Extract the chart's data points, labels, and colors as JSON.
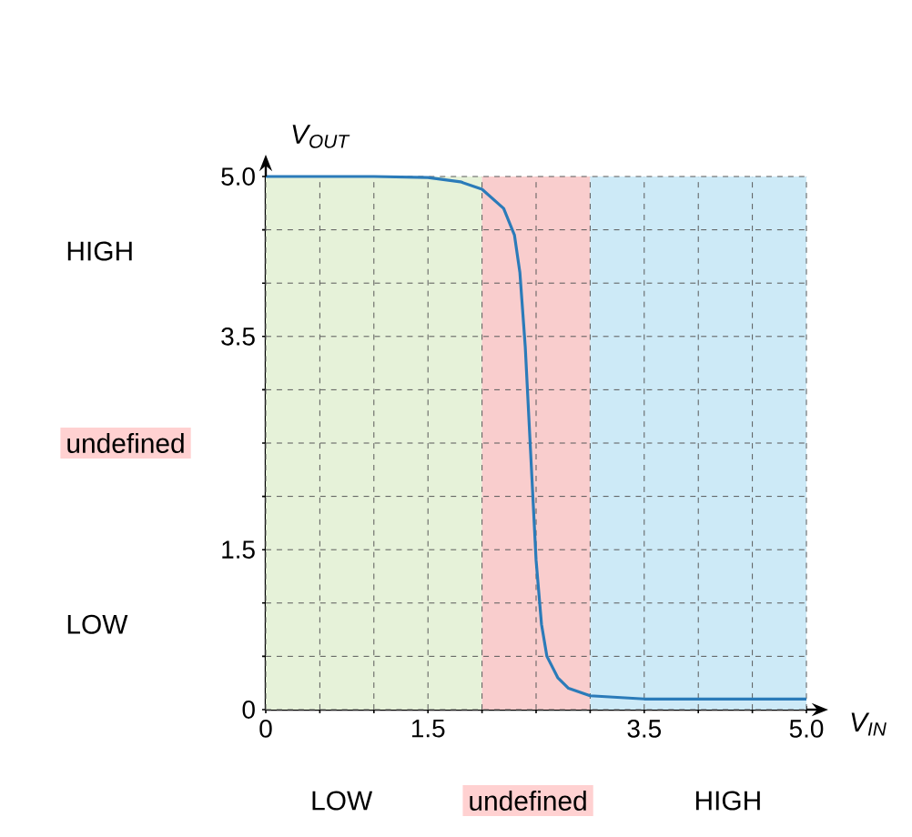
{
  "chart_data": {
    "type": "line",
    "xlabel": "V$_{IN}$",
    "ylabel": "V$_{OUT}$",
    "series": [
      {
        "color": "#2b7bb9",
        "x": [
          0,
          1,
          1.5,
          1.8,
          2.0,
          2.2,
          2.3,
          2.35,
          2.4,
          2.45,
          2.5,
          2.55,
          2.6,
          2.7,
          2.8,
          3.0,
          3.5,
          4.0,
          5.0
        ],
        "values": [
          5,
          5,
          4.99,
          4.95,
          4.88,
          4.7,
          4.45,
          4.1,
          3.4,
          2.4,
          1.4,
          0.8,
          0.5,
          0.3,
          0.2,
          0.13,
          0.1,
          0.1,
          0.1
        ]
      }
    ],
    "xlim": [
      0,
      5
    ],
    "ylim": [
      0,
      5
    ],
    "xticks": [
      0,
      {
        "value": 0.5,
        "label": null
      },
      {
        "value": 1,
        "label": null
      },
      1.5,
      {
        "value": 2,
        "label": null
      },
      {
        "value": 2.5,
        "label": null
      },
      {
        "value": 3,
        "label": null
      },
      3.5,
      {
        "value": 4,
        "label": null
      },
      {
        "value": 4.5,
        "label": null
      },
      {
        "value": 5,
        "label": "5.0"
      }
    ],
    "yticks": [
      0,
      {
        "value": 0.5,
        "label": null
      },
      {
        "value": 1,
        "label": null
      },
      1.5,
      {
        "value": 2,
        "label": null
      },
      {
        "value": 2.5,
        "label": null
      },
      {
        "value": 3,
        "label": null
      },
      3.5,
      {
        "value": 4,
        "label": null
      },
      {
        "value": 4.5,
        "label": null
      },
      {
        "value": 5,
        "label": "5.0"
      }
    ],
    "grid": true,
    "bands": [
      {
        "axis": "x",
        "from": 0,
        "to": 2,
        "color": "#e6f2d9"
      },
      {
        "axis": "x",
        "from": 2,
        "to": 3,
        "color": "#f9cdcd"
      },
      {
        "axis": "x",
        "from": 3,
        "to": 5,
        "color": "#cdeaf7"
      }
    ],
    "annotations": [
      "LOW",
      "undefined",
      "HIGH",
      "HIGH",
      "undefined",
      "LOW"
    ]
  }
}
